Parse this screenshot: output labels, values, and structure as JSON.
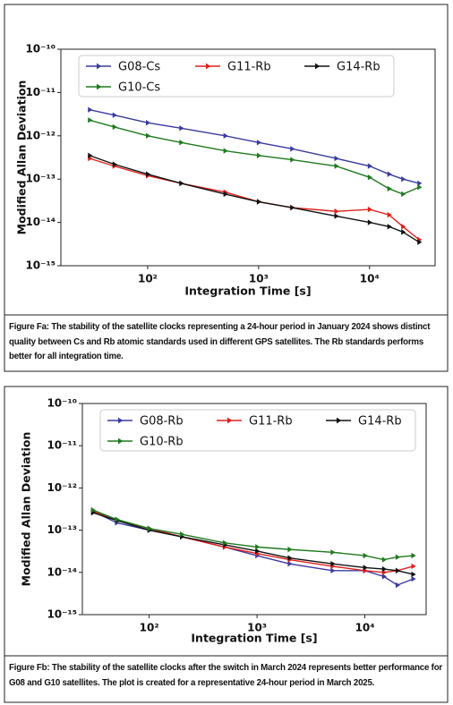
{
  "chart_data": [
    {
      "type": "line",
      "log_x": true,
      "log_y": true,
      "xlabel": "Integration Time [s]",
      "ylabel": "Modified Allan Deviation",
      "x": [
        30,
        50,
        100,
        200,
        500,
        1000,
        2000,
        5000,
        10000,
        15000,
        20000,
        28000
      ],
      "xlim": [
        16.5,
        39000
      ],
      "xticks": [
        {
          "value": 100,
          "label": "10²"
        },
        {
          "value": 1000,
          "label": "10³"
        },
        {
          "value": 10000,
          "label": "10⁴"
        }
      ],
      "ylim": [
        1e-15,
        1e-10
      ],
      "yticks": [
        {
          "value": 1e-15,
          "label": "10⁻¹⁵"
        },
        {
          "value": 1e-14,
          "label": "10⁻¹⁴"
        },
        {
          "value": 1e-13,
          "label": "10⁻¹³"
        },
        {
          "value": 1e-12,
          "label": "10⁻¹²"
        },
        {
          "value": 1e-11,
          "label": "10⁻¹¹"
        },
        {
          "value": 1e-10,
          "label": "10⁻¹⁰"
        }
      ],
      "legend": "upper left",
      "series": [
        {
          "name": "G08-Cs",
          "color": "#3b3b9e",
          "values": [
            4e-12,
            3e-12,
            2e-12,
            1.5e-12,
            1e-12,
            7e-13,
            5e-13,
            3e-13,
            2e-13,
            1.3e-13,
            1e-13,
            8e-14
          ]
        },
        {
          "name": "G11-Rb",
          "color": "#e0201c",
          "values": [
            3e-13,
            2e-13,
            1.2e-13,
            8e-14,
            5e-14,
            3e-14,
            2.2e-14,
            1.8e-14,
            2e-14,
            1.5e-14,
            8e-15,
            4e-15
          ]
        },
        {
          "name": "G14-Rb",
          "color": "#111111",
          "values": [
            3.5e-13,
            2.2e-13,
            1.3e-13,
            8e-14,
            4.5e-14,
            3e-14,
            2.2e-14,
            1.4e-14,
            1e-14,
            8e-15,
            6e-15,
            3.5e-15
          ]
        },
        {
          "name": "G10-Cs",
          "color": "#1f7a1f",
          "values": [
            2.3e-12,
            1.6e-12,
            1e-12,
            7e-13,
            4.5e-13,
            3.5e-13,
            2.8e-13,
            2e-13,
            1.1e-13,
            6e-14,
            4.5e-14,
            6.5e-14
          ]
        }
      ],
      "caption": "Figure Fa: The stability of the satellite clocks representing a 24-hour period in January 2024 shows distinct quality between Cs and Rb atomic standards used in different GPS satellites. The Rb standards performs better for all integration time."
    },
    {
      "type": "line",
      "log_x": true,
      "log_y": true,
      "xlabel": "Integration Time [s]",
      "ylabel": "Modified Allan Deviation",
      "x": [
        30,
        50,
        100,
        200,
        500,
        1000,
        2000,
        5000,
        10000,
        15000,
        20000,
        28000
      ],
      "xlim": [
        24,
        37000
      ],
      "xticks": [
        {
          "value": 100,
          "label": "10²"
        },
        {
          "value": 1000,
          "label": "10³"
        },
        {
          "value": 10000,
          "label": "10⁴"
        }
      ],
      "ylim": [
        1e-15,
        1e-10
      ],
      "yticks": [
        {
          "value": 1e-15,
          "label": "10⁻¹⁵"
        },
        {
          "value": 1e-14,
          "label": "10⁻¹⁴"
        },
        {
          "value": 1e-13,
          "label": "10⁻¹³"
        },
        {
          "value": 1e-12,
          "label": "10⁻¹²"
        },
        {
          "value": 1e-11,
          "label": "10⁻¹¹"
        },
        {
          "value": 1e-10,
          "label": "10⁻¹⁰"
        }
      ],
      "legend": "upper left",
      "series": [
        {
          "name": "G08-Rb",
          "color": "#3b3b9e",
          "values": [
            2.8e-13,
            1.5e-13,
            1e-13,
            7e-14,
            4e-14,
            2.5e-14,
            1.6e-14,
            1.1e-14,
            1.1e-14,
            8e-15,
            5e-15,
            7e-15
          ]
        },
        {
          "name": "G11-Rb",
          "color": "#e0201c",
          "values": [
            2.8e-13,
            1.7e-13,
            1.1e-13,
            7e-14,
            4e-14,
            2.8e-14,
            2e-14,
            1.4e-14,
            1.1e-14,
            1e-14,
            1.1e-14,
            1.4e-14
          ]
        },
        {
          "name": "G14-Rb",
          "color": "#111111",
          "values": [
            2.6e-13,
            1.7e-13,
            1e-13,
            7e-14,
            4.5e-14,
            3.2e-14,
            2.2e-14,
            1.6e-14,
            1.3e-14,
            1.2e-14,
            1.1e-14,
            9e-15
          ]
        },
        {
          "name": "G10-Rb",
          "color": "#1f7a1f",
          "values": [
            3e-13,
            1.8e-13,
            1.1e-13,
            8e-14,
            5e-14,
            4e-14,
            3.5e-14,
            3e-14,
            2.5e-14,
            2e-14,
            2.3e-14,
            2.5e-14
          ]
        }
      ],
      "caption": "Figure Fb: The stability of the satellite clocks after the switch in March 2024 represents better performance for G08 and G10 satellites. The plot is created for a representative 24-hour period in March 2025."
    }
  ]
}
